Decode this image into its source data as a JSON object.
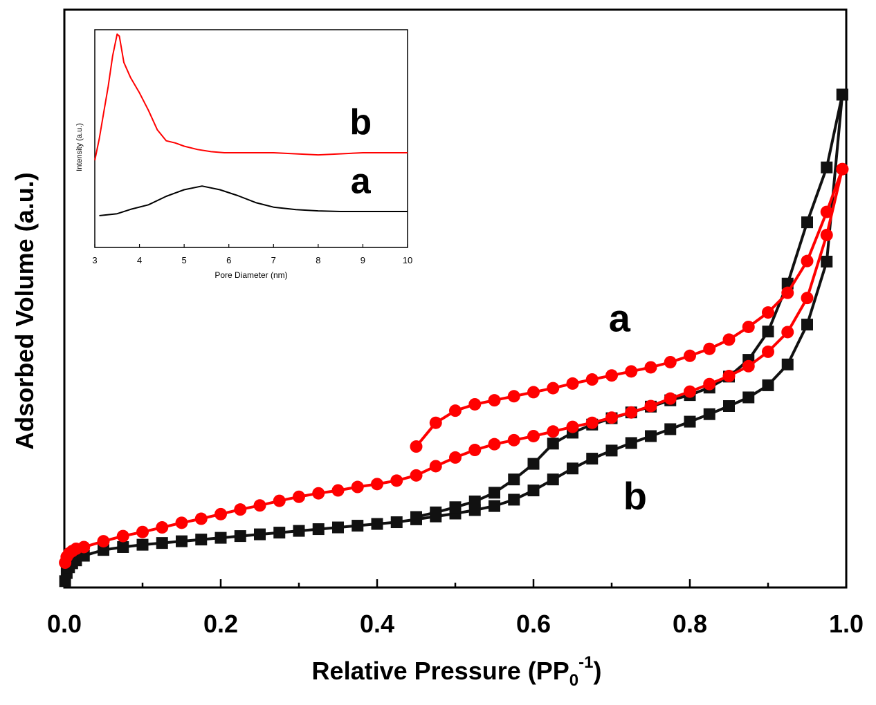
{
  "colors": {
    "series_a": "#ff0000",
    "series_b": "#111111",
    "axis": "#000000"
  },
  "chart_data": [
    {
      "type": "line",
      "role": "main",
      "xlabel": "Relative Pressure (PP",
      "xlabel_sub": "0",
      "xlabel_sup": "-1",
      "xlabel_close": ")",
      "ylabel": "Adsorbed Volume (a.u.)",
      "xlim": [
        0.0,
        1.0
      ],
      "ylim": [
        0,
        100
      ],
      "ytick_labels_shown": false,
      "xticks": [
        0.0,
        0.2,
        0.4,
        0.6,
        0.8,
        1.0
      ],
      "xtick_labels": [
        "0.0",
        "0.2",
        "0.4",
        "0.6",
        "0.8",
        "1.0"
      ],
      "series": [
        {
          "name": "a",
          "marker": "circle",
          "color": "#ff0000",
          "adsorption": {
            "x": [
              0.001,
              0.003,
              0.006,
              0.01,
              0.015,
              0.025,
              0.05,
              0.075,
              0.1,
              0.125,
              0.15,
              0.175,
              0.2,
              0.225,
              0.25,
              0.275,
              0.3,
              0.325,
              0.35,
              0.375,
              0.4,
              0.425,
              0.45,
              0.475,
              0.5,
              0.525,
              0.55,
              0.575,
              0.6,
              0.625,
              0.65,
              0.675,
              0.7,
              0.725,
              0.75,
              0.775,
              0.8,
              0.825,
              0.85,
              0.875,
              0.9,
              0.925,
              0.95,
              0.975,
              0.995
            ],
            "y": [
              4.3,
              5.3,
              5.9,
              6.3,
              6.7,
              7.0,
              8.0,
              8.9,
              9.6,
              10.4,
              11.2,
              11.9,
              12.7,
              13.5,
              14.2,
              15.0,
              15.7,
              16.3,
              16.8,
              17.4,
              17.9,
              18.5,
              19.4,
              21.0,
              22.5,
              23.8,
              24.8,
              25.5,
              26.2,
              27.0,
              27.8,
              28.5,
              29.4,
              30.3,
              31.4,
              32.7,
              33.9,
              35.2,
              36.6,
              38.3,
              40.8,
              44.2,
              50.1,
              61.0,
              72.4
            ]
          },
          "desorption": {
            "x": [
              0.995,
              0.975,
              0.95,
              0.925,
              0.9,
              0.875,
              0.85,
              0.825,
              0.8,
              0.775,
              0.75,
              0.725,
              0.7,
              0.675,
              0.65,
              0.625,
              0.6,
              0.575,
              0.55,
              0.525,
              0.5,
              0.475,
              0.45
            ],
            "y": [
              72.4,
              65.0,
              56.5,
              51.0,
              47.6,
              45.1,
              42.9,
              41.3,
              40.1,
              39.0,
              38.1,
              37.4,
              36.7,
              36.0,
              35.3,
              34.5,
              33.8,
              33.1,
              32.4,
              31.7,
              30.6,
              28.5,
              24.4
            ]
          }
        },
        {
          "name": "b",
          "marker": "square",
          "color": "#111111",
          "adsorption": {
            "x": [
              0.001,
              0.003,
              0.006,
              0.01,
              0.015,
              0.025,
              0.05,
              0.075,
              0.1,
              0.125,
              0.15,
              0.175,
              0.2,
              0.225,
              0.25,
              0.275,
              0.3,
              0.325,
              0.35,
              0.375,
              0.4,
              0.425,
              0.45,
              0.475,
              0.5,
              0.525,
              0.55,
              0.575,
              0.6,
              0.625,
              0.65,
              0.675,
              0.7,
              0.725,
              0.75,
              0.775,
              0.8,
              0.825,
              0.85,
              0.875,
              0.9,
              0.925,
              0.95,
              0.975,
              0.995
            ],
            "y": [
              1.1,
              2.5,
              3.5,
              4.2,
              4.7,
              5.5,
              6.5,
              7.0,
              7.4,
              7.7,
              8.0,
              8.3,
              8.6,
              8.9,
              9.2,
              9.5,
              9.8,
              10.1,
              10.4,
              10.7,
              11.0,
              11.3,
              11.8,
              12.3,
              12.8,
              13.4,
              14.1,
              15.2,
              16.8,
              18.7,
              20.6,
              22.3,
              23.7,
              25.0,
              26.2,
              27.4,
              28.7,
              30.0,
              31.4,
              32.9,
              35.0,
              38.6,
              45.5,
              56.4,
              85.3
            ]
          },
          "desorption": {
            "x": [
              0.995,
              0.975,
              0.95,
              0.925,
              0.9,
              0.875,
              0.85,
              0.825,
              0.8,
              0.775,
              0.75,
              0.725,
              0.7,
              0.675,
              0.65,
              0.625,
              0.6,
              0.575,
              0.55,
              0.525,
              0.5,
              0.475,
              0.45
            ],
            "y": [
              85.3,
              72.7,
              63.2,
              52.6,
              44.3,
              39.4,
              36.5,
              34.6,
              33.3,
              32.4,
              31.3,
              30.3,
              29.3,
              28.2,
              26.8,
              24.9,
              21.4,
              18.7,
              16.4,
              14.9,
              13.9,
              13.0,
              12.2
            ]
          }
        }
      ],
      "annotations": [
        {
          "text": "a",
          "x": 0.71,
          "y": 44.3
        },
        {
          "text": "b",
          "x": 0.73,
          "y": 13.5
        }
      ]
    },
    {
      "type": "line",
      "role": "inset",
      "xlabel": "Pore Diameter (nm)",
      "ylabel": "Intensity (a.u.)",
      "xlim": [
        3,
        10
      ],
      "ylim": [
        0,
        100
      ],
      "ytick_labels_shown": false,
      "xticks": [
        3,
        4,
        5,
        6,
        7,
        8,
        9,
        10
      ],
      "xtick_labels": [
        "3",
        "4",
        "5",
        "6",
        "7",
        "8",
        "9",
        "10"
      ],
      "series": [
        {
          "name": "b",
          "color": "#ff0000",
          "x": [
            3.0,
            3.1,
            3.2,
            3.3,
            3.4,
            3.5,
            3.55,
            3.65,
            3.8,
            4.0,
            4.2,
            4.4,
            4.6,
            4.8,
            5.0,
            5.3,
            5.6,
            5.9,
            6.5,
            7.0,
            8.0,
            9.0,
            10.0
          ],
          "y": [
            40,
            50,
            62,
            74,
            88,
            98,
            97,
            85,
            78,
            71,
            63,
            54,
            49,
            48,
            46.5,
            45,
            44,
            43.5,
            43.5,
            43.5,
            42.5,
            43.5,
            43.5
          ]
        },
        {
          "name": "a",
          "color": "#000000",
          "x": [
            3.1,
            3.5,
            3.8,
            4.2,
            4.6,
            5.0,
            5.4,
            5.8,
            6.2,
            6.6,
            7.0,
            7.5,
            8.0,
            8.5,
            9.0,
            10.0
          ],
          "y": [
            14.6,
            15.5,
            17.5,
            19.6,
            23.5,
            26.5,
            28.2,
            26.5,
            23.8,
            20.6,
            18.5,
            17.4,
            16.8,
            16.5,
            16.5,
            16.5
          ]
        }
      ],
      "annotations": [
        {
          "text": "b",
          "x": 8.95,
          "y": 52
        },
        {
          "text": "a",
          "x": 8.95,
          "y": 25
        }
      ]
    }
  ]
}
